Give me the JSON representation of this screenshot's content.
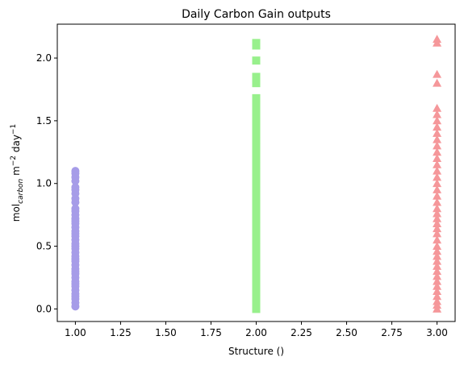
{
  "chart_data": {
    "type": "scatter",
    "title": "Daily Carbon Gain outputs",
    "xlabel": "Structure ()",
    "ylabel": {
      "prefix": "mol",
      "subscript": "carbon",
      "mid": " m",
      "sup1": "−2",
      "day": " day",
      "sup2": "−1"
    },
    "xlim": [
      0.9,
      3.1
    ],
    "ylim": [
      -0.1,
      2.27
    ],
    "xticks": [
      1.0,
      1.25,
      1.5,
      1.75,
      2.0,
      2.25,
      2.5,
      2.75,
      3.0
    ],
    "xtick_labels": [
      "1.00",
      "1.25",
      "1.50",
      "1.75",
      "2.00",
      "2.25",
      "2.50",
      "2.75",
      "3.00"
    ],
    "yticks": [
      0.0,
      0.5,
      1.0,
      1.5,
      2.0
    ],
    "ytick_labels": [
      "0.0",
      "0.5",
      "1.0",
      "1.5",
      "2.0"
    ],
    "grid": false,
    "series": [
      {
        "marker": "circle",
        "color": "#a69ce8",
        "x": 1,
        "y": [
          0.02,
          0.05,
          0.08,
          0.1,
          0.12,
          0.15,
          0.18,
          0.2,
          0.22,
          0.25,
          0.28,
          0.3,
          0.32,
          0.35,
          0.38,
          0.4,
          0.42,
          0.45,
          0.48,
          0.5,
          0.52,
          0.55,
          0.58,
          0.6,
          0.62,
          0.65,
          0.68,
          0.7,
          0.72,
          0.75,
          0.78,
          0.8,
          0.85,
          0.88,
          0.92,
          0.95,
          0.97,
          1.02,
          1.05,
          1.08,
          1.1
        ]
      },
      {
        "marker": "square",
        "color": "#98f08c",
        "x": 2,
        "y": [
          0.0,
          0.03,
          0.06,
          0.1,
          0.14,
          0.18,
          0.22,
          0.26,
          0.3,
          0.34,
          0.38,
          0.42,
          0.46,
          0.5,
          0.55,
          0.6,
          0.64,
          0.68,
          0.72,
          0.76,
          0.8,
          0.85,
          0.9,
          0.95,
          1.0,
          1.05,
          1.1,
          1.15,
          1.2,
          1.25,
          1.3,
          1.35,
          1.4,
          1.45,
          1.5,
          1.55,
          1.6,
          1.65,
          1.68,
          1.8,
          1.85,
          1.98,
          2.1,
          2.12
        ]
      },
      {
        "marker": "triangle",
        "color": "#f5979a",
        "x": 3,
        "y": [
          0.0,
          0.03,
          0.06,
          0.1,
          0.14,
          0.18,
          0.22,
          0.26,
          0.3,
          0.34,
          0.38,
          0.42,
          0.46,
          0.5,
          0.55,
          0.6,
          0.64,
          0.68,
          0.72,
          0.76,
          0.8,
          0.85,
          0.9,
          0.95,
          1.0,
          1.05,
          1.1,
          1.15,
          1.2,
          1.25,
          1.3,
          1.35,
          1.4,
          1.45,
          1.5,
          1.55,
          1.6,
          1.8,
          1.87,
          2.12,
          2.15
        ]
      }
    ]
  }
}
